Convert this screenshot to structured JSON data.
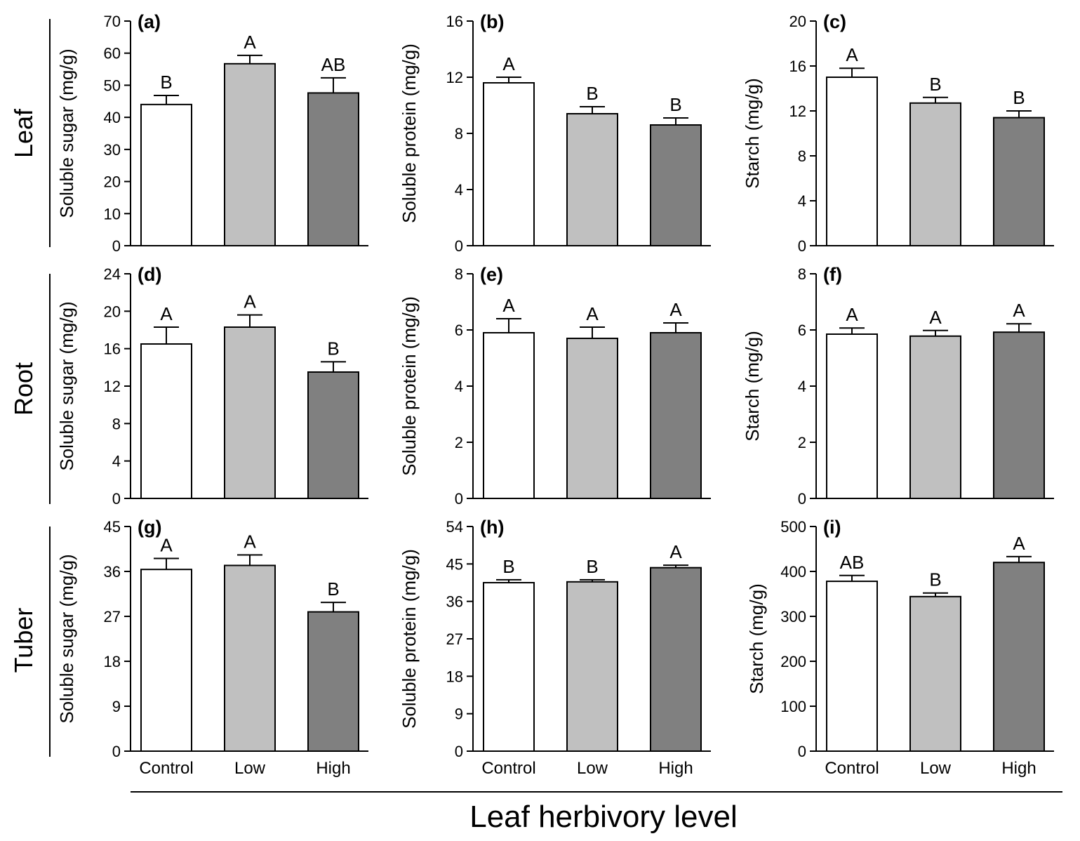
{
  "figure": {
    "row_labels": [
      "Leaf",
      "Root",
      "Tuber"
    ],
    "xlabel": "Leaf herbivory level",
    "categories": [
      "Control",
      "Low",
      "High"
    ],
    "colors": {
      "Control": "#ffffff",
      "Low": "#c0c0c0",
      "High": "#808080",
      "axis": "#000000"
    }
  },
  "chart_data": [
    {
      "type": "bar",
      "panel": "(a)",
      "row": "Leaf",
      "ylabel": "Soluble sugar (mg/g)",
      "ylim": [
        0,
        70
      ],
      "yticks": [
        0,
        10,
        20,
        30,
        40,
        50,
        60,
        70
      ],
      "categories": [
        "Control",
        "Low",
        "High"
      ],
      "values": [
        44,
        56.7,
        47.6
      ],
      "errors": [
        2.8,
        2.6,
        4.7
      ],
      "letters": [
        "B",
        "A",
        "AB"
      ]
    },
    {
      "type": "bar",
      "panel": "(b)",
      "row": "Leaf",
      "ylabel": "Soluble protein (mg/g)",
      "ylim": [
        0,
        16
      ],
      "yticks": [
        0,
        4,
        8,
        12,
        16
      ],
      "categories": [
        "Control",
        "Low",
        "High"
      ],
      "values": [
        11.6,
        9.4,
        8.6
      ],
      "errors": [
        0.4,
        0.5,
        0.5
      ],
      "letters": [
        "A",
        "B",
        "B"
      ]
    },
    {
      "type": "bar",
      "panel": "(c)",
      "row": "Leaf",
      "ylabel": "Starch (mg/g)",
      "ylim": [
        0,
        20
      ],
      "yticks": [
        0,
        4,
        8,
        12,
        16,
        20
      ],
      "categories": [
        "Control",
        "Low",
        "High"
      ],
      "values": [
        15,
        12.7,
        11.4
      ],
      "errors": [
        0.8,
        0.5,
        0.6
      ],
      "letters": [
        "A",
        "B",
        "B"
      ]
    },
    {
      "type": "bar",
      "panel": "(d)",
      "row": "Root",
      "ylabel": "Soluble sugar (mg/g)",
      "ylim": [
        0,
        24
      ],
      "yticks": [
        0,
        4,
        8,
        12,
        16,
        20,
        24
      ],
      "categories": [
        "Control",
        "Low",
        "High"
      ],
      "values": [
        16.5,
        18.3,
        13.5
      ],
      "errors": [
        1.8,
        1.3,
        1.1
      ],
      "letters": [
        "A",
        "A",
        "B"
      ]
    },
    {
      "type": "bar",
      "panel": "(e)",
      "row": "Root",
      "ylabel": "Soluble protein (mg/g)",
      "ylim": [
        0,
        8
      ],
      "yticks": [
        0,
        2,
        4,
        6,
        8
      ],
      "categories": [
        "Control",
        "Low",
        "High"
      ],
      "values": [
        5.9,
        5.7,
        5.9
      ],
      "errors": [
        0.5,
        0.4,
        0.35
      ],
      "letters": [
        "A",
        "A",
        "A"
      ]
    },
    {
      "type": "bar",
      "panel": "(f)",
      "row": "Root",
      "ylabel": "Starch (mg/g)",
      "ylim": [
        0,
        8
      ],
      "yticks": [
        0,
        2,
        4,
        6,
        8
      ],
      "categories": [
        "Control",
        "Low",
        "High"
      ],
      "values": [
        5.85,
        5.78,
        5.92
      ],
      "errors": [
        0.22,
        0.2,
        0.3
      ],
      "letters": [
        "A",
        "A",
        "A"
      ]
    },
    {
      "type": "bar",
      "panel": "(g)",
      "row": "Tuber",
      "ylabel": "Soluble sugar (mg/g)",
      "ylim": [
        0,
        45
      ],
      "yticks": [
        0,
        9,
        18,
        27,
        36,
        45
      ],
      "categories": [
        "Control",
        "Low",
        "High"
      ],
      "values": [
        36.4,
        37.2,
        27.9
      ],
      "errors": [
        2.2,
        2.1,
        1.9
      ],
      "letters": [
        "A",
        "A",
        "B"
      ]
    },
    {
      "type": "bar",
      "panel": "(h)",
      "row": "Tuber",
      "ylabel": "Soluble protein (mg/g)",
      "ylim": [
        0,
        54
      ],
      "yticks": [
        0,
        9,
        18,
        27,
        36,
        45,
        54
      ],
      "categories": [
        "Control",
        "Low",
        "High"
      ],
      "values": [
        40.5,
        40.7,
        44.1
      ],
      "errors": [
        0.7,
        0.5,
        0.6
      ],
      "letters": [
        "B",
        "B",
        "A"
      ]
    },
    {
      "type": "bar",
      "panel": "(i)",
      "row": "Tuber",
      "ylabel": "Starch (mg/g)",
      "ylim": [
        0,
        500
      ],
      "yticks": [
        0,
        100,
        200,
        300,
        400,
        500
      ],
      "categories": [
        "Control",
        "Low",
        "High"
      ],
      "values": [
        378,
        344,
        420
      ],
      "errors": [
        13,
        8,
        13
      ],
      "letters": [
        "AB",
        "B",
        "A"
      ]
    }
  ]
}
